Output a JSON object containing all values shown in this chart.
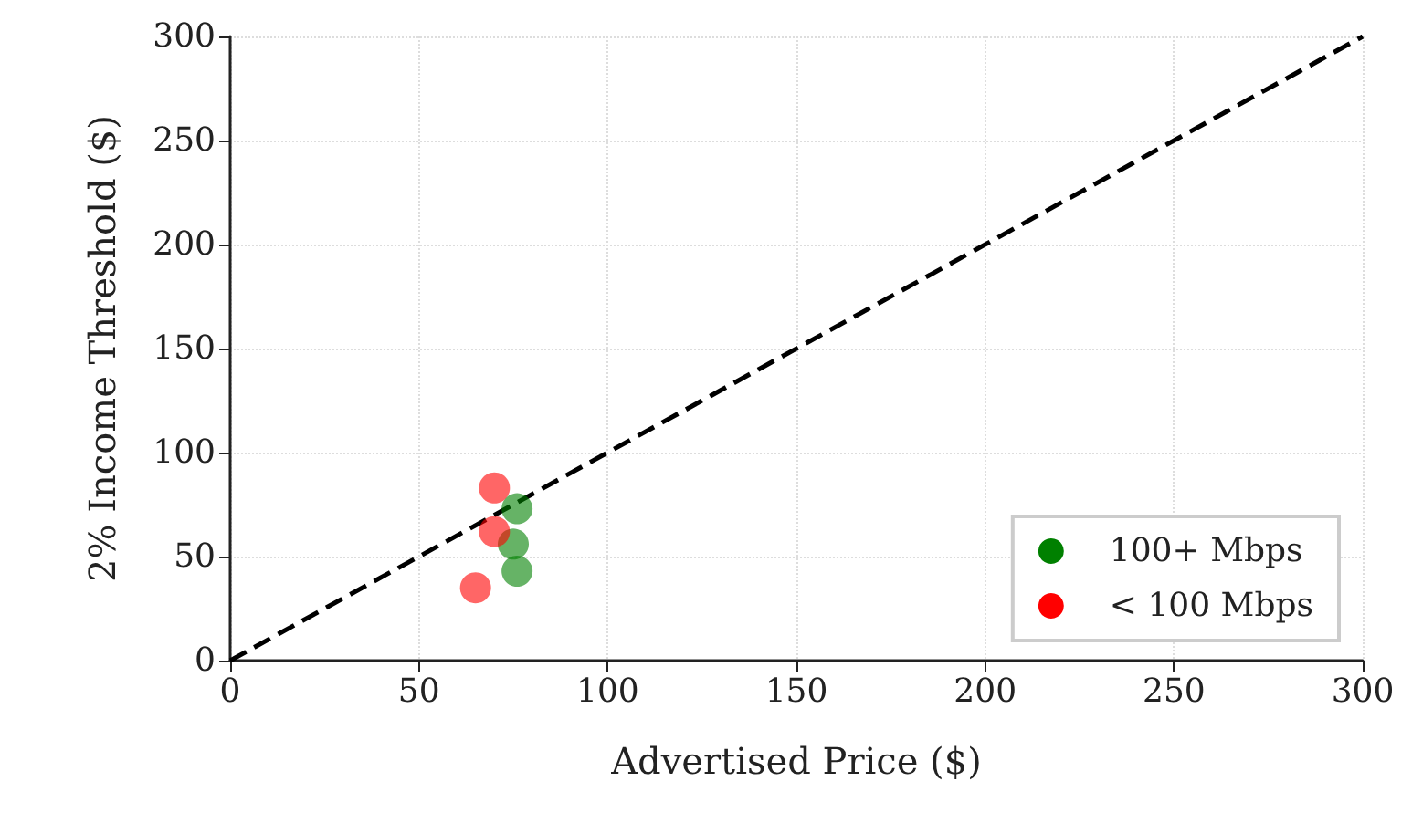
{
  "chart_data": {
    "type": "scatter",
    "xlabel": "Advertised Price ($)",
    "ylabel": "2% Income Threshold ($)",
    "xlim": [
      0,
      300
    ],
    "ylim": [
      0,
      300
    ],
    "xticks": [
      0,
      50,
      100,
      150,
      200,
      250,
      300
    ],
    "yticks": [
      0,
      50,
      100,
      150,
      200,
      250,
      300
    ],
    "grid": true,
    "legend": "bottom right",
    "marker": "circle",
    "series": [
      {
        "name": "100+ Mbps",
        "color": "#008000",
        "x": [
          76,
          75,
          76
        ],
        "values": [
          73,
          56,
          43
        ]
      },
      {
        "name": "< 100 Mbps",
        "color": "#ff0000",
        "x": [
          70,
          70,
          65
        ],
        "values": [
          83,
          62,
          35
        ]
      },
      {
        "type": "line",
        "color": "#000000",
        "line_style": "dashed",
        "marker": "none",
        "x": [
          0,
          300
        ],
        "values": [
          0,
          300
        ]
      }
    ]
  }
}
